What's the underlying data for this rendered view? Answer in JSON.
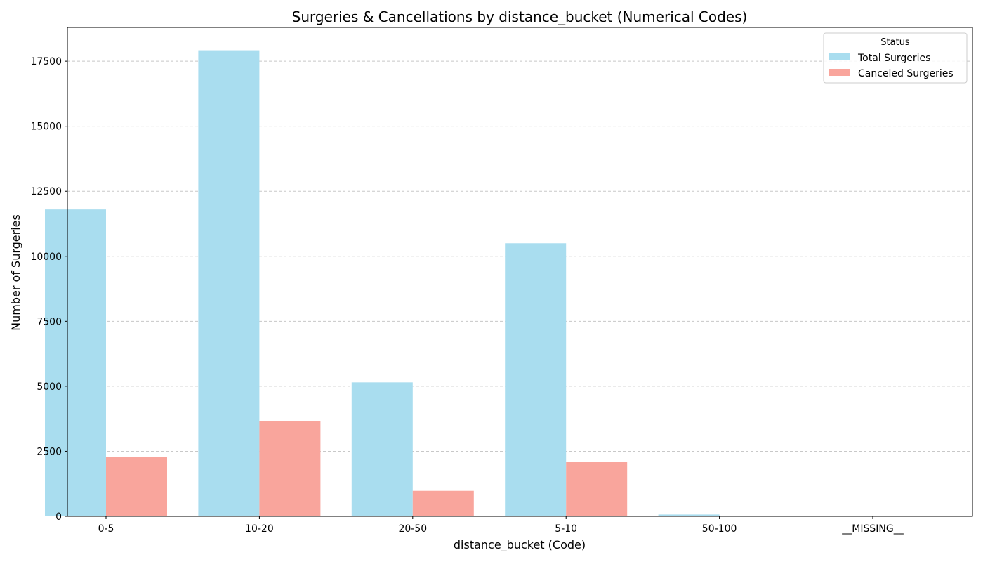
{
  "chart_data": {
    "type": "bar",
    "title": "Surgeries & Cancellations by distance_bucket (Numerical Codes)",
    "xlabel": "distance_bucket (Code)",
    "ylabel": "Number of Surgeries",
    "categories": [
      "0-5",
      "10-20",
      "20-50",
      "5-10",
      "50-100",
      "__MISSING__"
    ],
    "series": [
      {
        "name": "Total Surgeries",
        "color": "#a9ddef",
        "values": [
          11800,
          17920,
          5150,
          10500,
          70,
          0
        ]
      },
      {
        "name": "Canceled Surgeries",
        "color": "#f9a59c",
        "values": [
          2280,
          3650,
          980,
          2100,
          0,
          0
        ]
      }
    ],
    "ylim": [
      0,
      18800
    ],
    "yticks": [
      0,
      2500,
      5000,
      7500,
      10000,
      12500,
      15000,
      17500
    ],
    "grid": "y-dashed",
    "legend": {
      "title": "Status",
      "position": "top-right"
    }
  }
}
